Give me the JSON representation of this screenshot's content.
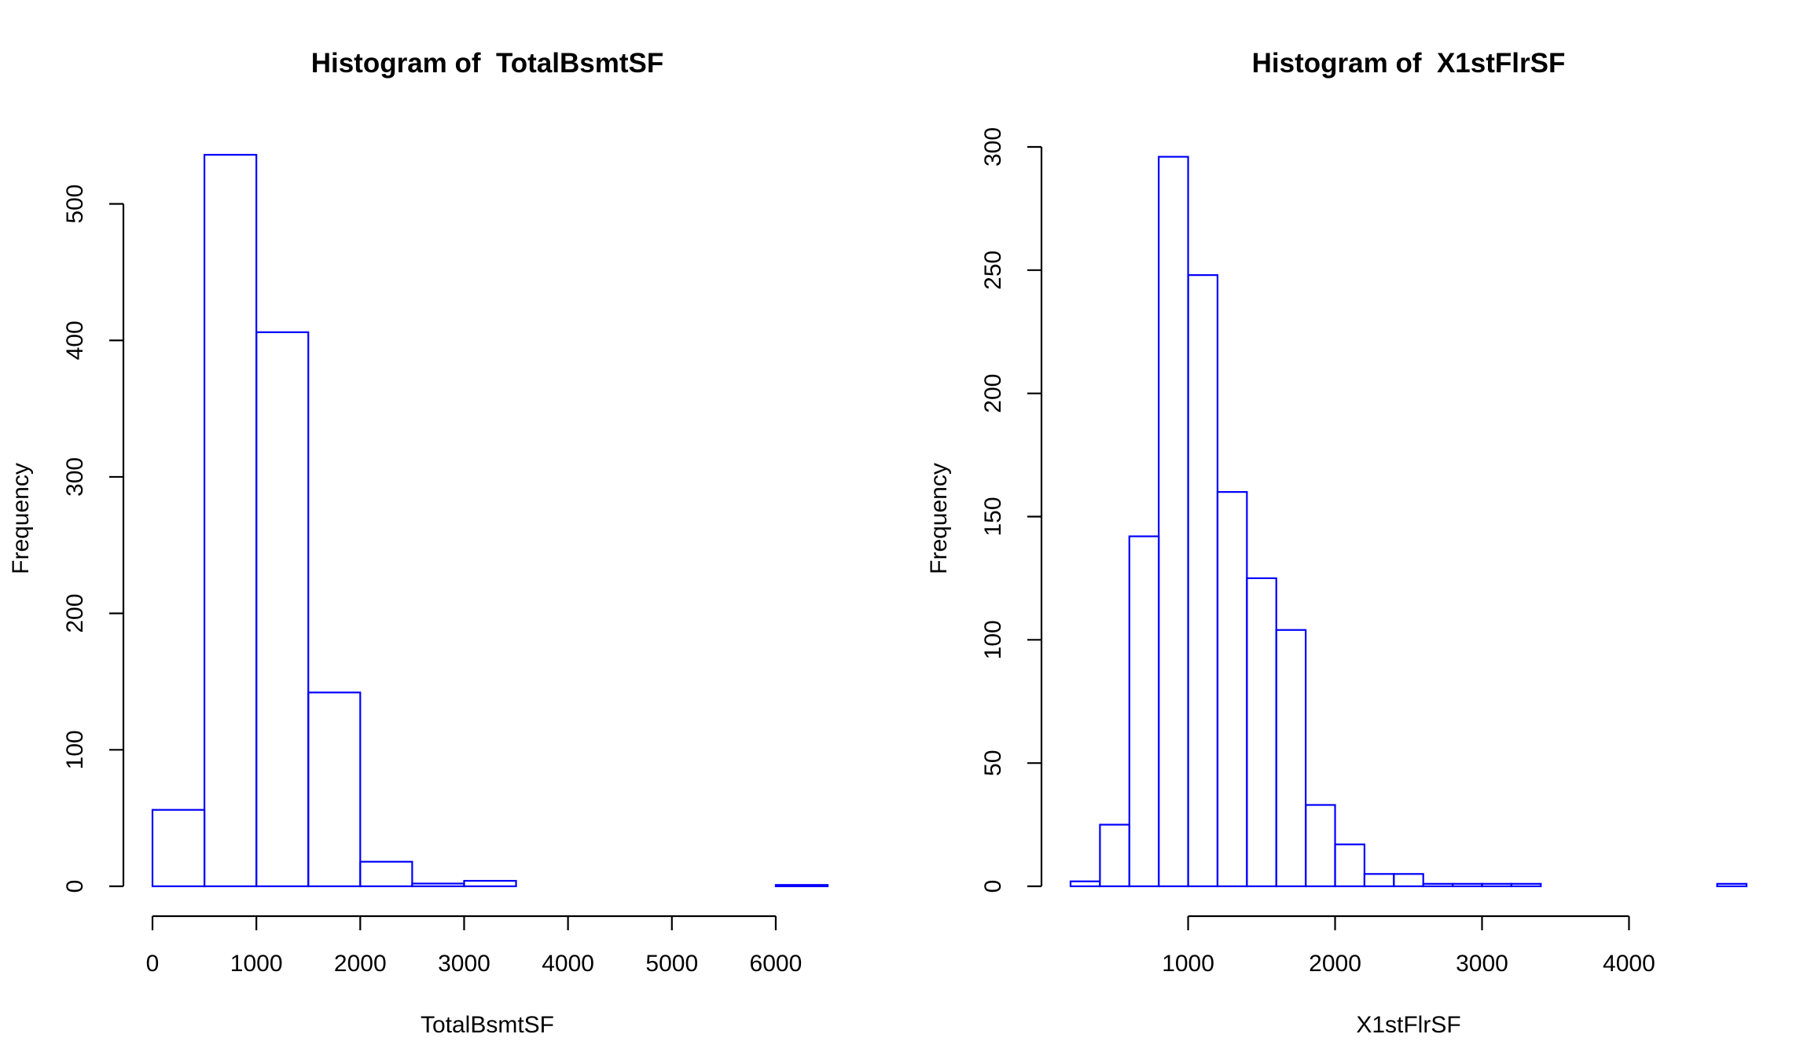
{
  "chart_data": [
    {
      "type": "bar",
      "title": "Histogram of  TotalBsmtSF",
      "xlabel": "TotalBsmtSF",
      "ylabel": "Frequency",
      "bar_color": "#0000FF",
      "bin_edges": [
        0,
        500,
        1000,
        1500,
        2000,
        2500,
        3000,
        3500,
        4000,
        4500,
        5000,
        5500,
        6000,
        6500
      ],
      "values": [
        56,
        536,
        406,
        142,
        18,
        2,
        4,
        0,
        0,
        0,
        0,
        0,
        1
      ],
      "xlim": [
        0,
        6500
      ],
      "ylim": [
        0,
        536
      ],
      "x_ticks": [
        0,
        1000,
        2000,
        3000,
        4000,
        5000,
        6000
      ],
      "x_tick_labels": [
        "0",
        "1000",
        "2000",
        "3000",
        "4000",
        "5000",
        "6000"
      ],
      "y_ticks": [
        0,
        100,
        200,
        300,
        400,
        500
      ],
      "y_tick_labels": [
        "0",
        "100",
        "200",
        "300",
        "400",
        "500"
      ],
      "grid": false
    },
    {
      "type": "bar",
      "title": "Histogram of  X1stFlrSF",
      "xlabel": "X1stFlrSF",
      "ylabel": "Frequency",
      "bar_color": "#0000FF",
      "bin_edges": [
        200,
        400,
        600,
        800,
        1000,
        1200,
        1400,
        1600,
        1800,
        2000,
        2200,
        2400,
        2600,
        2800,
        3000,
        3200,
        3400,
        3600,
        3800,
        4000,
        4200,
        4400,
        4600,
        4800
      ],
      "values": [
        2,
        25,
        142,
        296,
        248,
        160,
        125,
        104,
        33,
        17,
        5,
        5,
        1,
        1,
        1,
        1,
        0,
        0,
        0,
        0,
        0,
        0,
        1
      ],
      "xlim": [
        200,
        4800
      ],
      "ylim": [
        0,
        300
      ],
      "x_ticks": [
        1000,
        2000,
        3000,
        4000
      ],
      "x_tick_labels": [
        "1000",
        "2000",
        "3000",
        "4000"
      ],
      "y_ticks": [
        0,
        50,
        100,
        150,
        200,
        250,
        300
      ],
      "y_tick_labels": [
        "0",
        "50",
        "100",
        "150",
        "200",
        "250",
        "300"
      ],
      "grid": false
    }
  ]
}
